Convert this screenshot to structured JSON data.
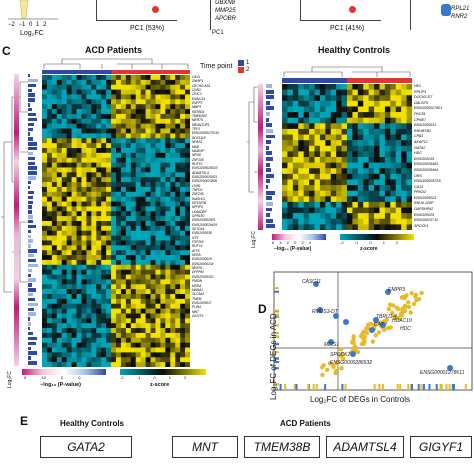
{
  "panelC": {
    "label": "C",
    "acd_title": "ACD Patients",
    "hc_title": "Healthy Controls",
    "legend_time_title": "Time point",
    "legend_time_values": [
      "1",
      "2"
    ],
    "log2fc_label": "Log₂FC",
    "pvalue_label": "−log₁₀ (P-value)",
    "pvalue_ticks_small": [
      "6",
      "4",
      "2",
      "0",
      "2",
      "4"
    ],
    "pvalue_ticks_large": [
      "5",
      "10",
      "5",
      "0"
    ],
    "zscore_label": "z-score",
    "zscore_ticks": [
      "-2",
      "-1",
      "0",
      "1",
      "2"
    ],
    "acd_genes": [
      "CAV1",
      "ZNHIP1",
      "CECHD-AS1",
      "CNN3",
      "CRIC3",
      "ENAIC14",
      "ENPP3",
      "MMP3",
      "KBTBD4",
      "TMEM182",
      "MERTK",
      "MEANTOP1",
      "TPP1",
      "ENSG000027S210",
      "DDX11L8",
      "NPAS1",
      "MAD",
      "MADHIP",
      "NRGE",
      "ZNF208",
      "RUFY3",
      "ENSG000029S03",
      "ADAMTSL4",
      "ENSG000029301",
      "ENSG000023806",
      "CNR1",
      "TNPO2",
      "ZNF295",
      "WASHC1",
      "KRTSP36",
      "NPHP4",
      "LKAADRY",
      "GPR150",
      "ENSG000029P1",
      "ENSG000029415",
      "SETD1A",
      "ENSG000038",
      "NTS",
      "FSP200",
      "RUFY4",
      "ATF5",
      "KERA",
      "ENSG000029",
      "ENSG0000234",
      "NEKR1",
      "DPPRM",
      "ENSG0000203",
      "PMSIN",
      "MSRA",
      "MANA1",
      "SLC9A4",
      "TMEM",
      "ENSG000017",
      "PLIN4",
      "MNT",
      "GIGYF1"
    ],
    "hc_genes": [
      "HE1",
      "RPLIP1",
      "DOCK5-DT",
      "GALNT6",
      "ENSG000027901",
      "PHC81",
      "CPNE7",
      "ENSG000031",
      "RHOBTB1",
      "CPA3",
      "AKAP12",
      "GATA2",
      "HDC",
      "ENSG00235",
      "ENSG0029463",
      "ENSG0029464",
      "ORS",
      "ENSG000097S5",
      "CA13",
      "PRKD2",
      "ENSG000023",
      "RNU6-125P",
      "GAPDHP42",
      "ENSG00029",
      "ENSG0023711",
      "SPOCK1"
    ]
  },
  "panelD": {
    "label": "D",
    "xlabel": "Log₂FC of DEGs in Controls",
    "ylabel": "Log₂FC of DEGs in ACD",
    "genes": [
      "CASC11",
      "RMDS3-DT",
      "EMPP3",
      "TBRU1-4",
      "CAT",
      "HDAC10",
      "HDC",
      "MEIS1",
      "SPOCK1",
      "ENSG0000286532",
      "ENSG00001278611"
    ]
  },
  "panelE": {
    "label": "E",
    "hc_title": "Healthy Controls",
    "acd_title": "ACD Patients",
    "hc_genes": [
      "GATA2"
    ],
    "acd_genes": [
      "MNT",
      "TMEM38B",
      "ADAMTSL4",
      "GIGYF1"
    ]
  },
  "top": {
    "log2fc_label": "Log₂FC",
    "axis_ticks": [
      "−2",
      "−1",
      "0",
      "1",
      "2"
    ],
    "pc1_a": "PC1 (53%)",
    "pc1_b": "PC1 (41%)",
    "pc1_c": "PC1",
    "genes_a": [
      "UBXN8",
      "MMP25",
      "APOBR"
    ],
    "genes_b": [
      "RPL21",
      "RNR2"
    ]
  },
  "colors": {
    "yellow": "#f2e200",
    "cyan": "#00a5b8",
    "black": "#0b0b0b",
    "tp1": "#2d4aa8",
    "tp2": "#e4342c",
    "blue_point": "#3a78d0",
    "gold_point": "#e9b928",
    "magenta": "#c4197a"
  }
}
